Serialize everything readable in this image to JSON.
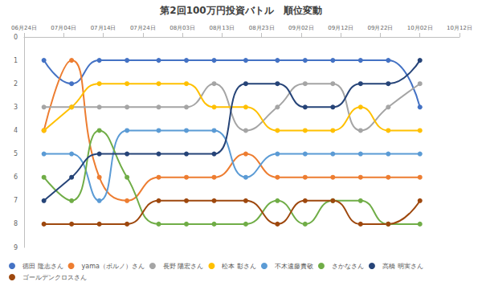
{
  "chart_data": {
    "type": "line",
    "title": "第2回100万円投資バトル　順位変動",
    "x": [
      5,
      12,
      19,
      26,
      34,
      41,
      48,
      56,
      64,
      71,
      78,
      85,
      92,
      100
    ],
    "xlim": [
      0,
      110
    ],
    "xticks": [
      {
        "value": 0,
        "label": "06月24日"
      },
      {
        "value": 10,
        "label": "07月04日"
      },
      {
        "value": 20,
        "label": "07月14日"
      },
      {
        "value": 30,
        "label": "07月24日"
      },
      {
        "value": 40,
        "label": "08月03日"
      },
      {
        "value": 50,
        "label": "08月13日"
      },
      {
        "value": 60,
        "label": "08月23日"
      },
      {
        "value": 70,
        "label": "09月02日"
      },
      {
        "value": 80,
        "label": "09月12日"
      },
      {
        "value": 90,
        "label": "09月22日"
      },
      {
        "value": 100,
        "label": "10月02日"
      },
      {
        "value": 110,
        "label": "10月12日"
      }
    ],
    "ylim": [
      9,
      0
    ],
    "yticks": [
      0,
      1,
      2,
      3,
      4,
      5,
      6,
      7,
      8,
      9
    ],
    "grid": false,
    "legend": "bottom",
    "marker": "circle",
    "line_style": "solid",
    "series": [
      {
        "name": "徳田 隆志さん",
        "color": "#4472c4",
        "values": [
          1,
          2,
          1,
          1,
          1,
          1,
          1,
          1,
          1,
          1,
          1,
          1,
          1,
          3
        ]
      },
      {
        "name": "yama（ボルノ）さん",
        "color": "#ed7d31",
        "values": [
          4,
          1,
          6,
          7,
          6,
          6,
          6,
          5,
          6,
          6,
          6,
          6,
          6,
          6
        ]
      },
      {
        "name": "長野 陽宏さん",
        "color": "#a5a5a5",
        "values": [
          3,
          3,
          3,
          3,
          3,
          3,
          2,
          4,
          3,
          2,
          2,
          4,
          3,
          2
        ]
      },
      {
        "name": "松本 彰さん",
        "color": "#ffc000",
        "values": [
          4,
          3,
          2,
          2,
          2,
          2,
          3,
          3,
          4,
          4,
          4,
          3,
          4,
          4
        ]
      },
      {
        "name": "不木遠藤貴敬",
        "color": "#5b9bd5",
        "values": [
          5,
          5,
          7,
          4,
          4,
          4,
          4,
          6,
          5,
          5,
          5,
          5,
          5,
          5
        ]
      },
      {
        "name": "さかなさん",
        "color": "#70ad47",
        "values": [
          6,
          7,
          4,
          6,
          8,
          8,
          8,
          8,
          7,
          8,
          7,
          7,
          8,
          8
        ]
      },
      {
        "name": "高橋 明実さん",
        "color": "#264478",
        "values": [
          7,
          6,
          5,
          5,
          5,
          5,
          5,
          2,
          2,
          3,
          3,
          2,
          2,
          1
        ]
      },
      {
        "name": "ゴールデンクロスさん",
        "color": "#9e480e",
        "values": [
          8,
          8,
          8,
          8,
          7,
          7,
          7,
          7,
          8,
          7,
          7,
          8,
          8,
          7
        ]
      }
    ]
  }
}
